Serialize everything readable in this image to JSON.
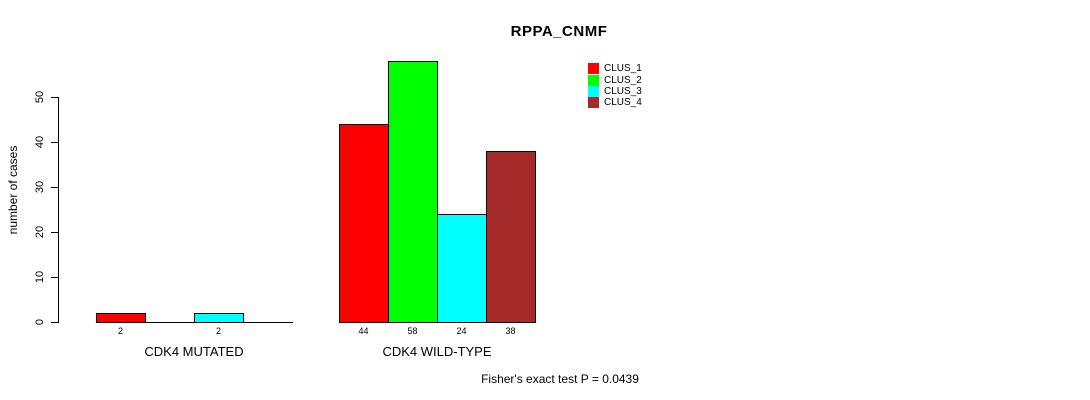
{
  "title": "RPPA_CNMF",
  "footer_note": "Fisher's exact test P = 0.0439",
  "chart_data": {
    "type": "bar",
    "title": "RPPA_CNMF",
    "xlabel": "",
    "ylabel": "number of cases",
    "ylim": [
      0,
      58
    ],
    "yticks": [
      0,
      10,
      20,
      30,
      40,
      50
    ],
    "grid": false,
    "legend_position": "top-right",
    "series": [
      {
        "name": "CLUS_1",
        "color": "#ff0000"
      },
      {
        "name": "CLUS_2",
        "color": "#00ff00"
      },
      {
        "name": "CLUS_3",
        "color": "#00ffff"
      },
      {
        "name": "CLUS_4",
        "color": "#a52a2a"
      }
    ],
    "groups": [
      {
        "label": "CDK4 MUTATED",
        "values": [
          2,
          0,
          2,
          0
        ]
      },
      {
        "label": "CDK4 WILD-TYPE",
        "values": [
          44,
          58,
          24,
          38
        ]
      }
    ],
    "bar_value_labels_shown_for_nonzero_only": true,
    "annotation": "Fisher's exact test P = 0.0439"
  }
}
